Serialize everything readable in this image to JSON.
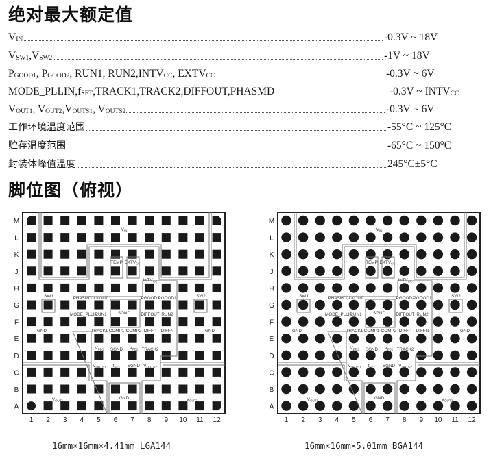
{
  "section1_title": "绝对最大额定值",
  "ratings": [
    {
      "label": [
        {
          "t": "V"
        },
        {
          "t": "IN",
          "sub": true
        }
      ],
      "value": [
        {
          "t": "-0.3V ~ 18V"
        }
      ]
    },
    {
      "label": [
        {
          "t": "V"
        },
        {
          "t": "SW1",
          "sub": true
        },
        {
          "t": ",V"
        },
        {
          "t": "SW2",
          "sub": true
        }
      ],
      "value": [
        {
          "t": "-1V ~ 18V"
        }
      ]
    },
    {
      "label": [
        {
          "t": "P"
        },
        {
          "t": "GOOD1",
          "sub": true
        },
        {
          "t": ", P"
        },
        {
          "t": "GOOD2",
          "sub": true
        },
        {
          "t": ", RUN1, RUN2,INTV"
        },
        {
          "t": "CC",
          "sub": true
        },
        {
          "t": ", EXTV"
        },
        {
          "t": "CC",
          "sub": true
        }
      ],
      "value": [
        {
          "t": "-0.3V ~ 6V"
        }
      ]
    },
    {
      "label": [
        {
          "t": "MODE_PLLIN,f"
        },
        {
          "t": "SET",
          "sub": true
        },
        {
          "t": ",TRACK1,TRACK2,DIFFOUT,PHASMD"
        }
      ],
      "value": [
        {
          "t": "-0.3V ~ INTV"
        },
        {
          "t": "CC",
          "sub": true
        }
      ]
    },
    {
      "label": [
        {
          "t": "V"
        },
        {
          "t": "OUT1",
          "sub": true
        },
        {
          "t": ", V"
        },
        {
          "t": "OUT2",
          "sub": true
        },
        {
          "t": ",V"
        },
        {
          "t": "OUTS1",
          "sub": true
        },
        {
          "t": ", V"
        },
        {
          "t": "OUTS2",
          "sub": true
        }
      ],
      "value": [
        {
          "t": "-0.3V ~ 6V"
        }
      ]
    },
    {
      "label": [
        {
          "t": "工作环境温度范围",
          "cn": true
        }
      ],
      "value": [
        {
          "t": "-55°C ~ 125°C"
        }
      ]
    },
    {
      "label": [
        {
          "t": "贮存温度范围",
          "cn": true
        }
      ],
      "value": [
        {
          "t": "-65°C ~ 150°C"
        }
      ]
    },
    {
      "label": [
        {
          "t": "封装体峰值温度",
          "cn": true
        }
      ],
      "value": [
        {
          "t": "245°C±5°C"
        }
      ]
    }
  ],
  "section2_title": "脚位图（俯视）",
  "rows": [
    "M",
    "L",
    "K",
    "J",
    "H",
    "G",
    "F",
    "E",
    "D",
    "C",
    "B",
    "A"
  ],
  "cols": [
    "1",
    "2",
    "3",
    "4",
    "5",
    "6",
    "7",
    "8",
    "9",
    "10",
    "11",
    "12"
  ],
  "pin_labels": [
    {
      "t": "V",
      "s": "IN"
    },
    {
      "t": "TEMP"
    },
    {
      "t": "EXTV",
      "s": "CC"
    },
    {
      "t": "INTV",
      "s": "CC"
    },
    {
      "t": "SW1"
    },
    {
      "t": "PHASMD"
    },
    {
      "t": "CLKOUT"
    },
    {
      "t": "PGOOD2"
    },
    {
      "t": "PGOOD1"
    },
    {
      "t": "SW2"
    },
    {
      "t": "MODE_PLLIN"
    },
    {
      "t": "RUN1"
    },
    {
      "t": "SGND"
    },
    {
      "t": "DIFFOUT"
    },
    {
      "t": "RUN2"
    },
    {
      "t": "GND"
    },
    {
      "t": "TRACK1"
    },
    {
      "t": "COMP1"
    },
    {
      "t": "COMP2"
    },
    {
      "t": "DIFFP"
    },
    {
      "t": "DIFFN"
    },
    {
      "t": "GND"
    },
    {
      "t": "V",
      "s": "FB1"
    },
    {
      "t": "SGND"
    },
    {
      "t": "V",
      "s": "FB2"
    },
    {
      "t": "TRACK2"
    },
    {
      "t": "V",
      "s": "OUTS1"
    },
    {
      "t": "f",
      "s": "SET"
    },
    {
      "t": "SGND"
    },
    {
      "t": "V",
      "s": "OUTS2"
    },
    {
      "t": "V",
      "s": "OUT1"
    },
    {
      "t": "GND"
    },
    {
      "t": "V",
      "s": "OUT2"
    }
  ],
  "packages": [
    {
      "type": "LGA",
      "caption": "16mm×16mm×4.41mm LGA144"
    },
    {
      "type": "BGA",
      "caption": "16mm×16mm×5.01mm BGA144"
    }
  ],
  "colors": {
    "pad": "#1a1a1a",
    "outline": "#777777",
    "border": "#222222"
  }
}
